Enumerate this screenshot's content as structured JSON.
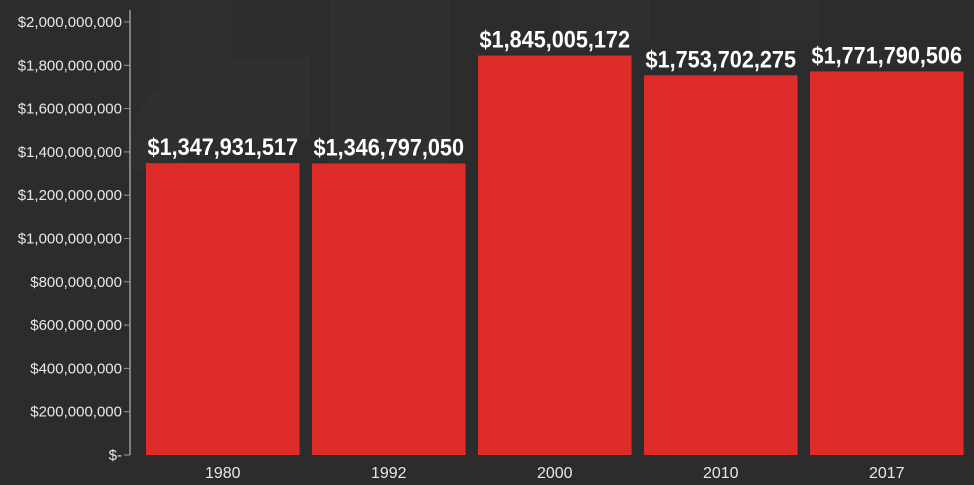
{
  "chart_data": {
    "type": "bar",
    "title": "",
    "xlabel": "",
    "ylabel": "",
    "categories": [
      "1980",
      "1992",
      "2000",
      "2010",
      "2017"
    ],
    "values": [
      1347931517,
      1346797050,
      1845005172,
      1753702275,
      1771790506
    ],
    "data_labels": [
      "$1,347,931,517",
      "$1,346,797,050",
      "$1,845,005,172",
      "$1,753,702,275",
      "$1,771,790,506"
    ],
    "ylim": [
      0,
      2000000000
    ],
    "yticks": [
      0,
      200000000,
      400000000,
      600000000,
      800000000,
      1000000000,
      1200000000,
      1400000000,
      1600000000,
      1800000000,
      2000000000
    ],
    "ytick_labels": [
      "$-",
      "$200,000,000",
      "$400,000,000",
      "$600,000,000",
      "$800,000,000",
      "$1,000,000,000",
      "$1,200,000,000",
      "$1,400,000,000",
      "$1,600,000,000",
      "$1,800,000,000",
      "$2,000,000,000"
    ],
    "grid": false,
    "colors": {
      "bar": "#e02b2b",
      "background": "#2c2c2c",
      "axis": "#9a9a9a",
      "text": "#e8e8e8"
    }
  }
}
